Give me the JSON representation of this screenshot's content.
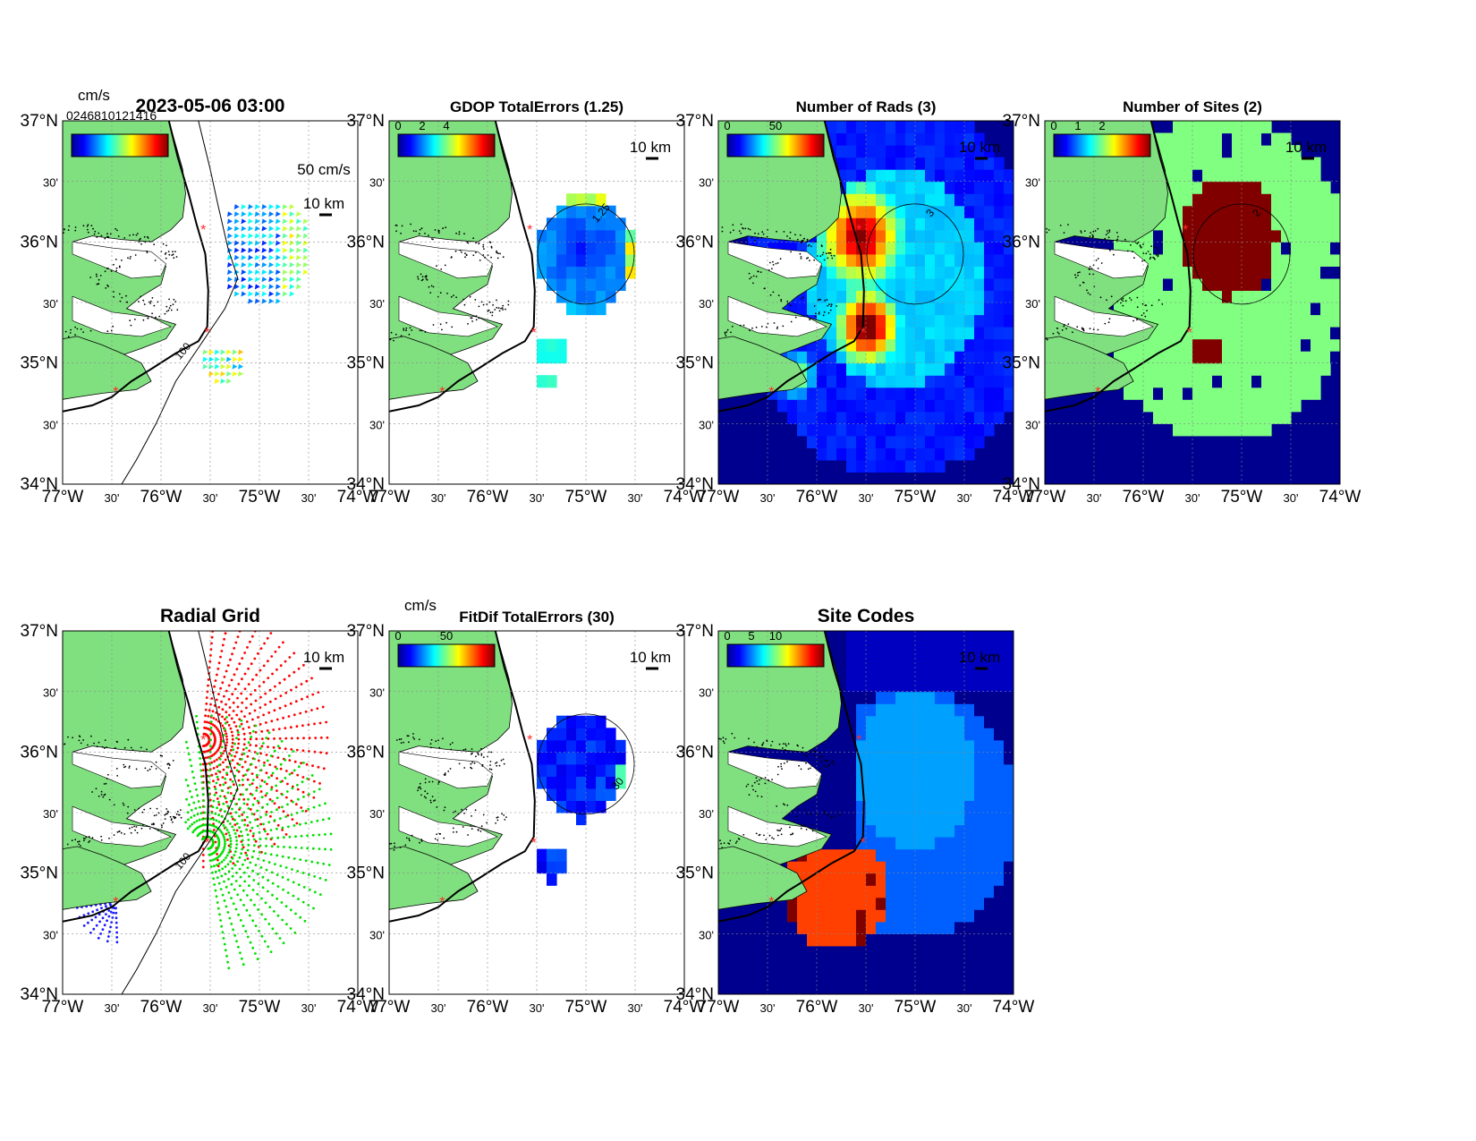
{
  "figure": {
    "panels": [
      {
        "id": "currents",
        "title": "2023-05-06 03:00",
        "title_weight": "bold",
        "colorbar": {
          "unit_label": "cm/s",
          "ticks": [],
          "overlap_label": "0246810121416"
        },
        "scale_labels": [
          "50 cm/s",
          "10 km"
        ],
        "contour_label": "100",
        "layer": "vectors"
      },
      {
        "id": "gdop",
        "title": "GDOP TotalErrors (1.25)",
        "colorbar": {
          "unit_label": "",
          "ticks": [
            "0",
            "2",
            "4"
          ]
        },
        "scale_labels": [
          "10 km"
        ],
        "contour_label": "1.25",
        "layer": "gdop"
      },
      {
        "id": "num-rads",
        "title": "Number of Rads (3)",
        "colorbar": {
          "unit_label": "",
          "ticks": [
            "0",
            "50"
          ]
        },
        "scale_labels": [
          "10 km"
        ],
        "contour_label": "3",
        "layer": "rads"
      },
      {
        "id": "num-sites",
        "title": "Number of Sites (2)",
        "colorbar": {
          "unit_label": "",
          "ticks": [
            "0",
            "1",
            "2"
          ]
        },
        "scale_labels": [
          "10 km"
        ],
        "contour_label": "2",
        "layer": "sites"
      },
      {
        "id": "radial-grid",
        "title": "Radial Grid",
        "colorbar": null,
        "scale_labels": [
          "10 km"
        ],
        "contour_label": "100",
        "layer": "radial"
      },
      {
        "id": "fitdif",
        "title": "FitDif TotalErrors (30)",
        "colorbar": {
          "unit_label": "cm/s",
          "ticks": [
            "0",
            "50"
          ]
        },
        "scale_labels": [
          "10 km"
        ],
        "contour_label": "30",
        "layer": "fitdif"
      },
      {
        "id": "site-codes",
        "title": "Site Codes",
        "colorbar": {
          "unit_label": "",
          "ticks": [
            "0",
            "5",
            "10"
          ]
        },
        "scale_labels": [
          "10 km"
        ],
        "contour_label": "",
        "layer": "codes"
      }
    ],
    "axes": {
      "lon_ticks": [
        "77°W",
        "30'",
        "76°W",
        "30'",
        "75°W",
        "30'",
        "74°W"
      ],
      "lat_ticks": [
        "37°N",
        "30'",
        "36°N",
        "30'",
        "35°N",
        "30'",
        "34°N"
      ],
      "lon_range": [
        -77,
        -74
      ],
      "lat_range": [
        34,
        37
      ]
    },
    "colors": {
      "land": "#80e080",
      "sea_fill": "#00008f",
      "coast": "#000000",
      "site_marker": "#ff2a2a",
      "radial_site_colors": [
        "#ff0000",
        "#00e000",
        "#1a1aff"
      ]
    },
    "site_markers": [
      {
        "lon": -75.57,
        "lat": 36.1
      },
      {
        "lon": -75.53,
        "lat": 35.25
      },
      {
        "lon": -76.46,
        "lat": 34.76
      }
    ]
  },
  "chart_data": [
    {
      "type": "vector",
      "title": "2023-05-06 03:00",
      "xlabel": "",
      "ylabel": "",
      "xlim": [
        -77,
        -74
      ],
      "ylim": [
        34,
        37
      ],
      "colorbar_label": "cm/s",
      "note_labels": [
        "50 cm/s",
        "10 km",
        "100"
      ]
    },
    {
      "type": "heatmap",
      "title": "GDOP TotalErrors (1.25)",
      "colorbar_ticks": [
        0,
        2,
        4
      ],
      "xlim": [
        -77,
        -74
      ],
      "ylim": [
        34,
        37
      ],
      "contour_level": 1.25
    },
    {
      "type": "heatmap",
      "title": "Number of Rads (3)",
      "colorbar_ticks": [
        0,
        50
      ],
      "xlim": [
        -77,
        -74
      ],
      "ylim": [
        34,
        37
      ],
      "contour_level": 3
    },
    {
      "type": "heatmap",
      "title": "Number of Sites (2)",
      "colorbar_ticks": [
        0,
        1,
        2
      ],
      "xlim": [
        -77,
        -74
      ],
      "ylim": [
        34,
        37
      ],
      "contour_level": 2
    },
    {
      "type": "scatter",
      "title": "Radial Grid",
      "xlim": [
        -77,
        -74
      ],
      "ylim": [
        34,
        37
      ],
      "series_colors": [
        "red",
        "green",
        "blue"
      ]
    },
    {
      "type": "heatmap",
      "title": "FitDif TotalErrors (30)",
      "colorbar_label": "cm/s",
      "colorbar_ticks": [
        0,
        50
      ],
      "xlim": [
        -77,
        -74
      ],
      "ylim": [
        34,
        37
      ],
      "contour_level": 30
    },
    {
      "type": "heatmap",
      "title": "Site Codes",
      "colorbar_ticks": [
        0,
        5,
        10
      ],
      "xlim": [
        -77,
        -74
      ],
      "ylim": [
        34,
        37
      ]
    }
  ]
}
